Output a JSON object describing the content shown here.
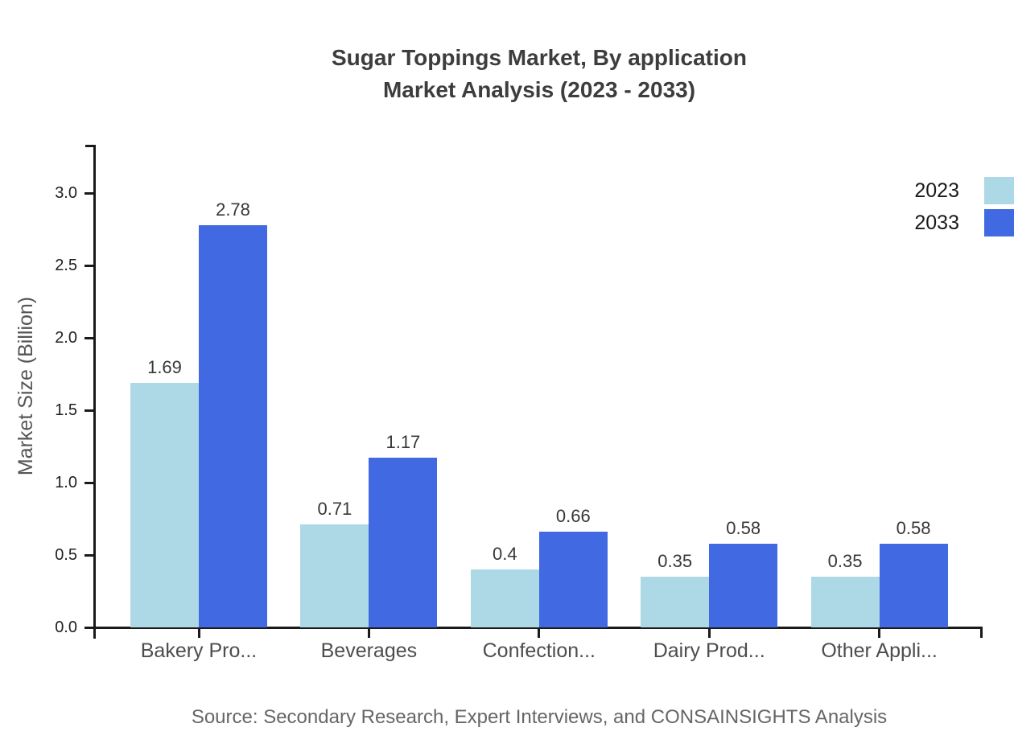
{
  "title": {
    "line1": "Sugar Toppings Market, By application",
    "line2": "Market Analysis (2023 - 2033)"
  },
  "chart_data": {
    "type": "bar",
    "title": "Sugar Toppings Market, By application Market Analysis (2023 - 2033)",
    "categories": [
      "Bakery Pro...",
      "Beverages",
      "Confection...",
      "Dairy Prod...",
      "Other Appli..."
    ],
    "series": [
      {
        "name": "2023",
        "color": "#ADD8E6",
        "values": [
          1.69,
          0.71,
          0.4,
          0.35,
          0.35
        ]
      },
      {
        "name": "2033",
        "color": "#4169E1",
        "values": [
          2.78,
          1.17,
          0.66,
          0.58,
          0.58
        ]
      }
    ],
    "xlabel": "",
    "ylabel": "Market Size (Billion)",
    "ylim": [
      0,
      3.33
    ],
    "y_ticks": [
      "0.0",
      "0.5",
      "1.0",
      "1.5",
      "2.0",
      "2.5",
      "3.0"
    ],
    "grid": false,
    "bar_value_labels": true,
    "legend_position": "top-right"
  },
  "source": {
    "text": "Source: Secondary Research, Expert Interviews, and CONSAINSIGHTS Analysis"
  }
}
